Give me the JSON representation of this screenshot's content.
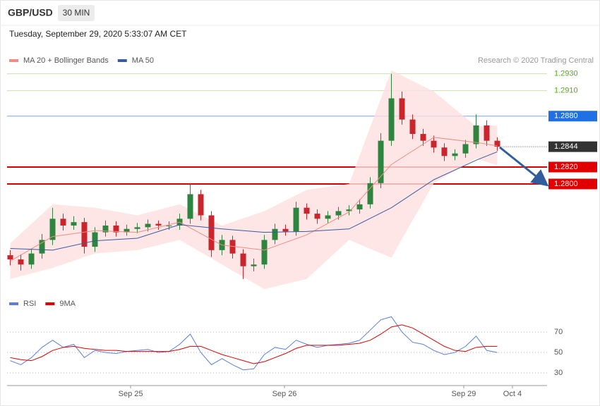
{
  "header": {
    "symbol": "GBP/USD",
    "interval": "30 MIN",
    "timestamp": "Tuesday, September 29, 2020 5:33:07 AM CET",
    "credit": "Research © 2020 Trading Central"
  },
  "chart_data": [
    {
      "type": "candlestick",
      "up_color": "#2e8540",
      "down_color": "#c8252c",
      "open": [
        1.2716,
        1.2711,
        1.2705,
        1.2718,
        1.2734,
        1.2759,
        1.2751,
        1.2755,
        1.2726,
        1.2743,
        1.2751,
        1.2743,
        1.2747,
        1.2749,
        1.2753,
        1.2751,
        1.2751,
        1.2759,
        1.2788,
        1.2763,
        1.2722,
        1.2734,
        1.2718,
        1.2703,
        1.2705,
        1.2734,
        1.2747,
        1.2744,
        1.2772,
        1.2765,
        1.2759,
        1.2763,
        1.2768,
        1.277,
        1.2776,
        1.2801,
        1.2851,
        1.2901,
        1.2876,
        1.2859,
        1.2851,
        1.2843,
        1.2833,
        1.2836,
        1.2847,
        1.2869,
        1.2851
      ],
      "high": [
        1.2722,
        1.2717,
        1.2724,
        1.2741,
        1.2772,
        1.2765,
        1.2762,
        1.276,
        1.2749,
        1.2757,
        1.2756,
        1.2752,
        1.2754,
        1.2758,
        1.2757,
        1.2756,
        1.2765,
        1.2801,
        1.2793,
        1.2768,
        1.274,
        1.2739,
        1.2723,
        1.2712,
        1.274,
        1.2753,
        1.2752,
        1.2779,
        1.2777,
        1.277,
        1.2768,
        1.2773,
        1.2775,
        1.2782,
        1.2808,
        1.286,
        1.293,
        1.2909,
        1.2882,
        1.2865,
        1.2857,
        1.2848,
        1.2841,
        1.2852,
        1.2882,
        1.2875,
        1.2855
      ],
      "low": [
        1.2704,
        1.2698,
        1.27,
        1.2712,
        1.2728,
        1.2745,
        1.2746,
        1.2718,
        1.272,
        1.2738,
        1.2738,
        1.2739,
        1.2742,
        1.2744,
        1.2746,
        1.2746,
        1.2746,
        1.2753,
        1.2757,
        1.2714,
        1.2716,
        1.2712,
        1.2688,
        1.2697,
        1.27,
        1.2729,
        1.2739,
        1.2739,
        1.2758,
        1.2753,
        1.2754,
        1.2758,
        1.2763,
        1.2765,
        1.2771,
        1.2795,
        1.2845,
        1.287,
        1.2853,
        1.2845,
        1.2837,
        1.2827,
        1.2828,
        1.2831,
        1.2842,
        1.2845,
        1.2839
      ],
      "close": [
        1.2711,
        1.2705,
        1.2718,
        1.2734,
        1.2759,
        1.2751,
        1.2755,
        1.2726,
        1.2743,
        1.2751,
        1.2743,
        1.2747,
        1.2749,
        1.2753,
        1.2751,
        1.2751,
        1.2759,
        1.2788,
        1.2763,
        1.2722,
        1.2734,
        1.2718,
        1.2703,
        1.2705,
        1.2734,
        1.2747,
        1.2744,
        1.2772,
        1.2765,
        1.2759,
        1.2763,
        1.2768,
        1.277,
        1.2776,
        1.2801,
        1.2851,
        1.2901,
        1.2876,
        1.2859,
        1.2851,
        1.2843,
        1.2833,
        1.2836,
        1.2847,
        1.2869,
        1.2851,
        1.2844
      ],
      "overlays": [
        {
          "name": "MA 20 + Bollinger Bands",
          "color": "#f28b82",
          "band_color": "#fde0de",
          "x": [
            0,
            4,
            8,
            12,
            16,
            20,
            24,
            28,
            32,
            36,
            40,
            44,
            46
          ],
          "upper": [
            1.273,
            1.2776,
            1.2772,
            1.2763,
            1.2776,
            1.2751,
            1.2768,
            1.2793,
            1.28,
            1.2934,
            1.2909,
            1.2868,
            1.2869
          ],
          "values": [
            1.2709,
            1.2738,
            1.2745,
            1.2743,
            1.2755,
            1.2728,
            1.2722,
            1.274,
            1.2767,
            1.2823,
            1.2855,
            1.2849,
            1.2845
          ],
          "lower": [
            1.2688,
            1.2701,
            1.2718,
            1.2722,
            1.2734,
            1.2705,
            1.2676,
            1.2688,
            1.2734,
            1.2713,
            1.2801,
            1.283,
            1.2822
          ]
        },
        {
          "name": "MA 50",
          "color": "#3b5ba0",
          "x": [
            0,
            4,
            8,
            12,
            16,
            20,
            24,
            28,
            32,
            36,
            40,
            44,
            46
          ],
          "values": [
            1.2724,
            1.2722,
            1.2733,
            1.2736,
            1.2752,
            1.2747,
            1.2743,
            1.2744,
            1.2747,
            1.2772,
            1.2805,
            1.2828,
            1.2838
          ]
        }
      ],
      "levels": [
        {
          "value": 1.293,
          "label": "1.2930",
          "color": "#5aa61e",
          "line_color": "#c9e2ad",
          "style": "text"
        },
        {
          "value": 1.291,
          "label": "1.2910",
          "color": "#5aa61e",
          "line_color": "#c9e2ad",
          "style": "text"
        },
        {
          "value": 1.288,
          "label": "1.2880",
          "color": "#1f6fe5",
          "line_color": "#7aa5ef",
          "style": "box"
        },
        {
          "value": 1.2844,
          "label": "1.2844",
          "color": "#333333",
          "line_color": "#555555",
          "style": "dotted"
        },
        {
          "value": 1.282,
          "label": "1.2820",
          "color": "#e00000",
          "line_color": "#d40000",
          "style": "box"
        },
        {
          "value": 1.28,
          "label": "1.2800",
          "color": "#e00000",
          "line_color": "#d40000",
          "style": "box"
        }
      ],
      "xlim": [
        -0.3,
        50.7
      ],
      "ylim": [
        1.2672,
        1.2938
      ]
    },
    {
      "type": "line",
      "series": [
        {
          "name": "RSI",
          "color": "#5b7fe0",
          "values": [
            42,
            38,
            45,
            55,
            62,
            55,
            58,
            45,
            52,
            50,
            49,
            51,
            52,
            53,
            50,
            51,
            58,
            68,
            50,
            38,
            44,
            38,
            33,
            34,
            48,
            55,
            53,
            62,
            58,
            55,
            57,
            58,
            59,
            62,
            72,
            82,
            85,
            70,
            60,
            58,
            52,
            48,
            50,
            56,
            66,
            52,
            50
          ]
        },
        {
          "name": "9MA",
          "color": "#e00000",
          "values": [
            45,
            43,
            42,
            46,
            52,
            55,
            56,
            54,
            53,
            52,
            52,
            51,
            51,
            51,
            51,
            51,
            53,
            56,
            56,
            52,
            48,
            45,
            42,
            39,
            41,
            45,
            49,
            54,
            57,
            57,
            57,
            57,
            58,
            59,
            62,
            68,
            75,
            77,
            74,
            68,
            62,
            56,
            52,
            51,
            55,
            56,
            56
          ]
        }
      ],
      "xlim": [
        -0.3,
        50.7
      ],
      "xticks": [
        {
          "value": 11.37,
          "label": "Sep 25"
        },
        {
          "value": 25.9,
          "label": "Sep 26"
        },
        {
          "value": 42.83,
          "label": "Sep 29"
        },
        {
          "value": 47.43,
          "label": "Oct 4"
        }
      ],
      "ylim": [
        19,
        88
      ],
      "yticks": [
        30,
        50,
        70
      ],
      "grid": true
    }
  ]
}
